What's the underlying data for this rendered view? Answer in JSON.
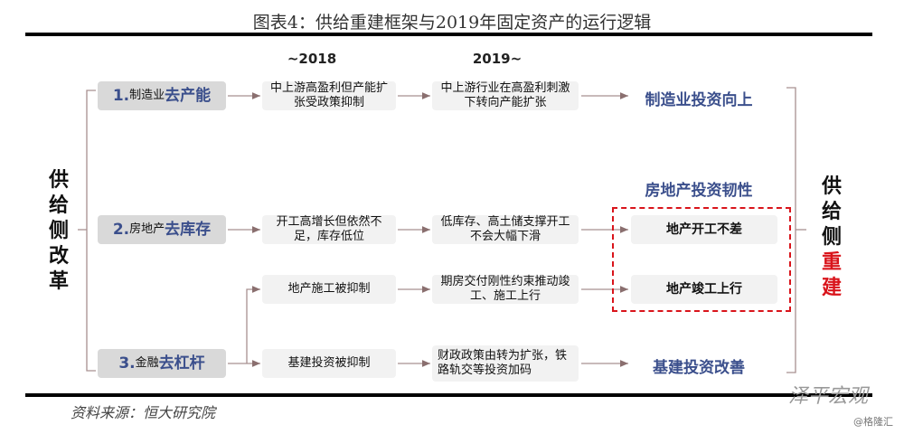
{
  "title": "图表4：供给重建框架与2019年固定资产的运行逻辑",
  "headers": {
    "before": "~2018",
    "after": "2019~"
  },
  "left_label": [
    "供",
    "给",
    "侧",
    "改",
    "革"
  ],
  "right_label": {
    "normal": [
      "供",
      "给",
      "侧"
    ],
    "highlight": [
      "重",
      "建"
    ]
  },
  "rows": [
    {
      "num": "1.",
      "sector": "制造业",
      "action": "去产能",
      "before": "中上游高盈利但产能扩张受政策抑制",
      "after": "中上游行业在高盈利刺激下转向产能扩张",
      "result": "制造业投资向上"
    },
    {
      "num": "2.",
      "sector": "房地产",
      "action": "去库存",
      "before": "开工高增长但依然不足，库存低位",
      "after": "低库存、高土储支撑开工不会大幅下滑",
      "result": "地产开工不差"
    },
    {
      "before": "地产施工被抑制",
      "after": "期房交付刚性约束推动竣工、施工上行",
      "result": "地产竣工上行"
    },
    {
      "num": "3.",
      "sector": "金融",
      "action": "去杠杆",
      "before": "基建投资被抑制",
      "after": "财政政策由转为扩张，铁路轨交等投资加码",
      "result": "基建投资改善"
    }
  ],
  "real_estate_label": "房地产投资韧性",
  "source": "资料来源：恒大研究院",
  "watermark": "泽平宏观",
  "watermark2": "@格隆汇",
  "colors": {
    "accent": "#3b4f8c",
    "highlight": "#d9141b"
  }
}
